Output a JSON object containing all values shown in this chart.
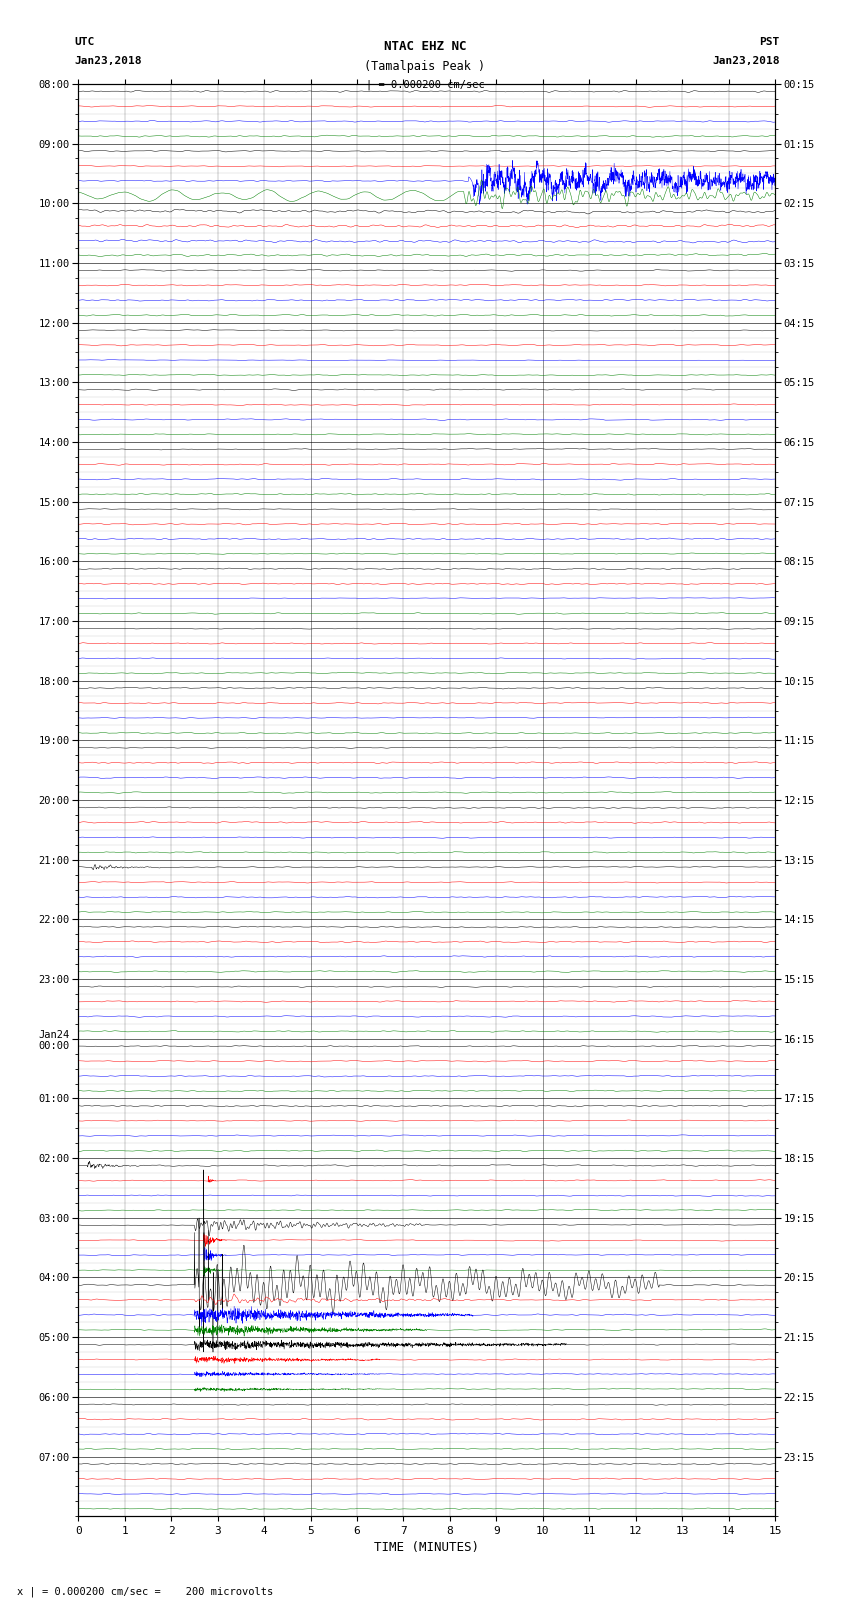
{
  "title_line1": "NTAC EHZ NC",
  "title_line2": "(Tamalpais Peak )",
  "scale_text": "| = 0.000200 cm/sec",
  "left_label_top": "UTC",
  "left_label_date": "Jan23,2018",
  "right_label_top": "PST",
  "right_label_date": "Jan23,2018",
  "bottom_label": "TIME (MINUTES)",
  "bottom_note": "x | = 0.000200 cm/sec =    200 microvolts",
  "xlabel_ticks": [
    0,
    1,
    2,
    3,
    4,
    5,
    6,
    7,
    8,
    9,
    10,
    11,
    12,
    13,
    14,
    15
  ],
  "utc_labels": [
    "08:00",
    "09:00",
    "10:00",
    "11:00",
    "12:00",
    "13:00",
    "14:00",
    "15:00",
    "16:00",
    "17:00",
    "18:00",
    "19:00",
    "20:00",
    "21:00",
    "22:00",
    "23:00",
    "Jan24\n00:00",
    "01:00",
    "02:00",
    "03:00",
    "04:00",
    "05:00",
    "06:00",
    "07:00"
  ],
  "pst_labels": [
    "00:15",
    "01:15",
    "02:15",
    "03:15",
    "04:15",
    "05:15",
    "06:15",
    "07:15",
    "08:15",
    "09:15",
    "10:15",
    "11:15",
    "12:15",
    "13:15",
    "14:15",
    "15:15",
    "16:15",
    "17:15",
    "18:15",
    "19:15",
    "20:15",
    "21:15",
    "22:15",
    "23:15"
  ],
  "colors": [
    "black",
    "red",
    "blue",
    "green"
  ],
  "bg_color": "#ffffff",
  "num_rows": 96,
  "xlim": [
    0,
    15
  ],
  "noise_seed": 12345
}
